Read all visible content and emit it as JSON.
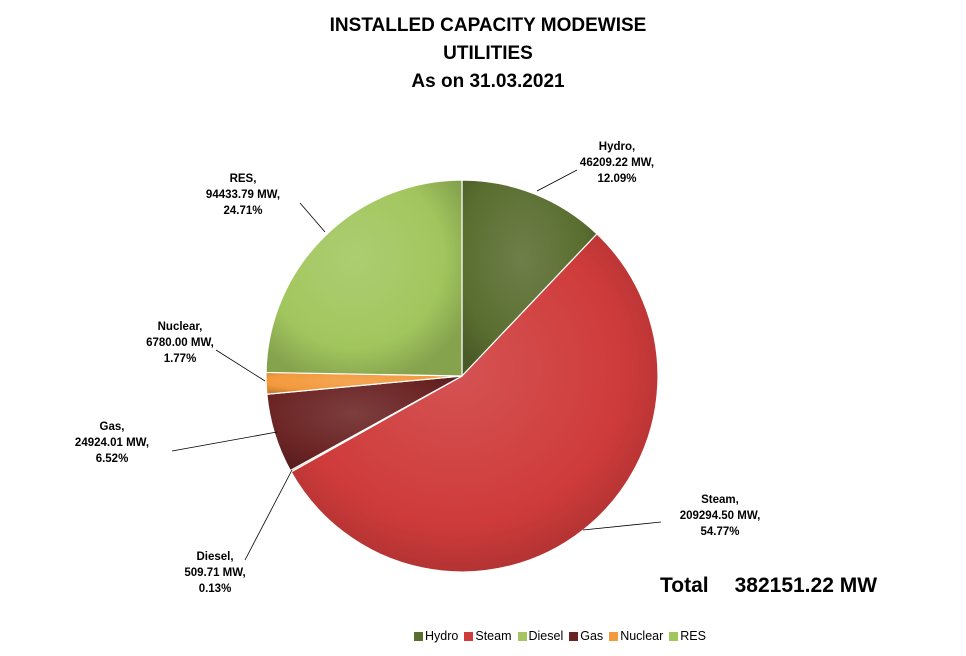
{
  "title_lines": [
    "INSTALLED CAPACITY MODEWISE",
    "UTILITIES",
    "As on 31.03.2021"
  ],
  "total": {
    "label": "Total",
    "value": "382151.22 MW"
  },
  "chart_data": {
    "type": "pie",
    "title": "INSTALLED CAPACITY MODEWISE UTILITIES As on 31.03.2021",
    "start_angle_deg": 0,
    "direction": "clockwise",
    "legend": "bottom",
    "slices": [
      {
        "name": "Hydro",
        "value": 46209.22,
        "value_label": "46209.22 MW,",
        "percent": 12.09,
        "percent_label": "12.09%",
        "color": "#5a6e30"
      },
      {
        "name": "Steam",
        "value": 209294.5,
        "value_label": "209294.50 MW,",
        "percent": 54.77,
        "percent_label": "54.77%",
        "color": "#cf3b3b"
      },
      {
        "name": "Diesel",
        "value": 509.71,
        "value_label": "509.71 MW,",
        "percent": 0.13,
        "percent_label": "0.13%",
        "color": "#a4c561"
      },
      {
        "name": "Gas",
        "value": 24924.01,
        "value_label": "24924.01 MW,",
        "percent": 6.52,
        "percent_label": "6.52%",
        "color": "#6b2424"
      },
      {
        "name": "Nuclear",
        "value": 6780.0,
        "value_label": "6780.00 MW,",
        "percent": 1.77,
        "percent_label": "1.77%",
        "color": "#f39a3d"
      },
      {
        "name": "RES",
        "value": 94433.79,
        "value_label": "94433.79 MW,",
        "percent": 24.71,
        "percent_label": "24.71%",
        "color": "#a2c65e"
      }
    ]
  }
}
